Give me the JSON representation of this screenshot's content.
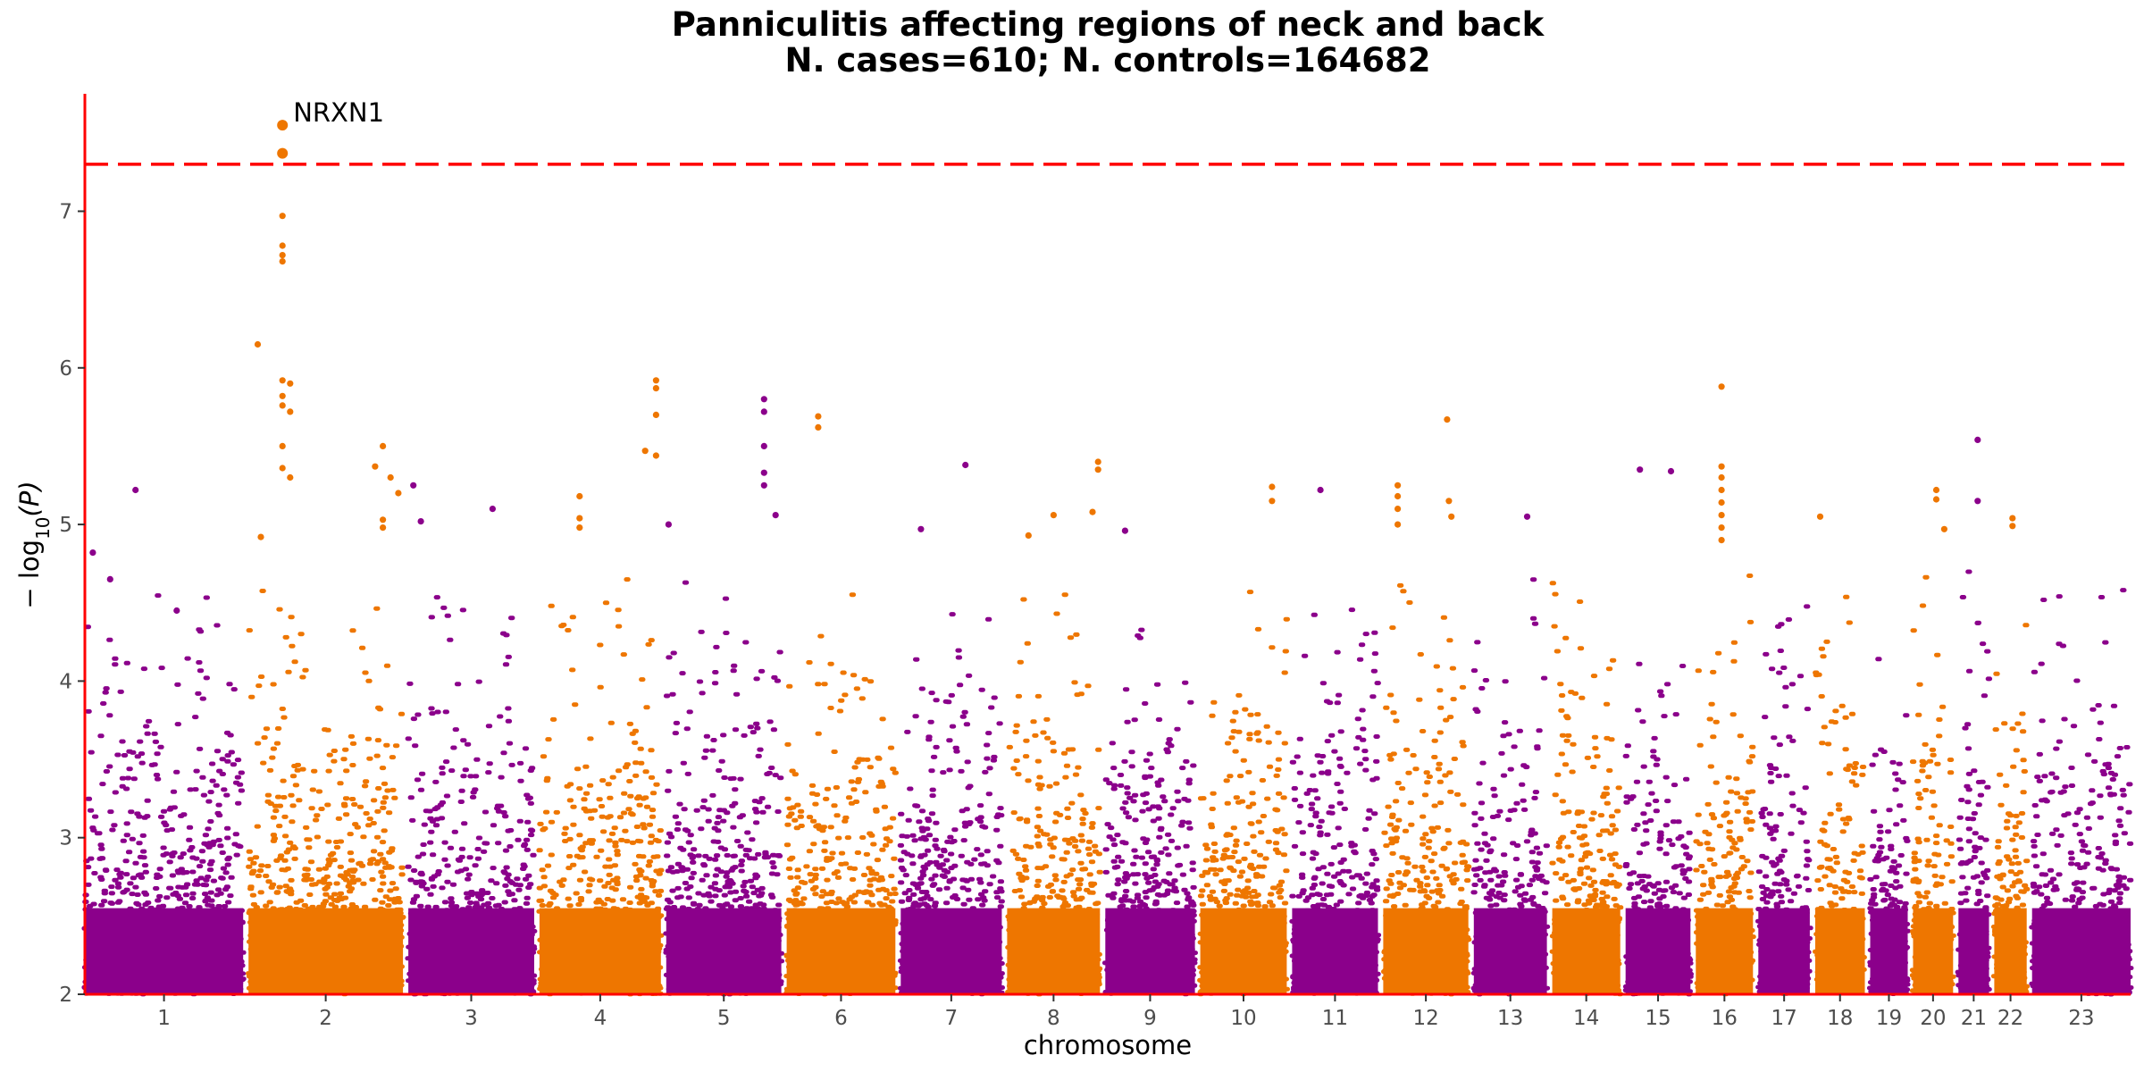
{
  "chart_data": {
    "type": "scatter",
    "subtype": "manhattan",
    "title": "Panniculitis affecting regions of neck and back",
    "subtitle": "N. cases=610; N. controls=164682",
    "xlabel": "chromosome",
    "ylabel": "− log10(P)",
    "ylim": [
      2,
      7.75
    ],
    "yticks": [
      2,
      3,
      4,
      5,
      6,
      7
    ],
    "significance_line": 7.3,
    "colors": {
      "odd": "#8b008b",
      "even": "#ee7600",
      "threshold": "#ff0000",
      "axis": "#ff0000"
    },
    "chromosomes": [
      {
        "label": "1",
        "size": 249
      },
      {
        "label": "2",
        "size": 243
      },
      {
        "label": "3",
        "size": 198
      },
      {
        "label": "4",
        "size": 191
      },
      {
        "label": "5",
        "size": 181
      },
      {
        "label": "6",
        "size": 171
      },
      {
        "label": "7",
        "size": 159
      },
      {
        "label": "8",
        "size": 146
      },
      {
        "label": "9",
        "size": 141
      },
      {
        "label": "10",
        "size": 136
      },
      {
        "label": "11",
        "size": 135
      },
      {
        "label": "12",
        "size": 134
      },
      {
        "label": "13",
        "size": 115
      },
      {
        "label": "14",
        "size": 107
      },
      {
        "label": "15",
        "size": 102
      },
      {
        "label": "16",
        "size": 90
      },
      {
        "label": "17",
        "size": 81
      },
      {
        "label": "18",
        "size": 78
      },
      {
        "label": "19",
        "size": 59
      },
      {
        "label": "20",
        "size": 63
      },
      {
        "label": "21",
        "size": 48
      },
      {
        "label": "22",
        "size": 51
      },
      {
        "label": "23",
        "size": 155
      }
    ],
    "peaks": [
      {
        "chr": "1",
        "pos": 0.05,
        "y": 4.82
      },
      {
        "chr": "1",
        "pos": 0.16,
        "y": 4.65
      },
      {
        "chr": "1",
        "pos": 0.32,
        "y": 5.22
      },
      {
        "chr": "1",
        "pos": 0.58,
        "y": 4.45
      },
      {
        "chr": "2",
        "pos": 0.06,
        "y": 6.15
      },
      {
        "chr": "2",
        "pos": 0.08,
        "y": 4.92
      },
      {
        "chr": "2",
        "pos": 0.22,
        "y": 7.55
      },
      {
        "chr": "2",
        "pos": 0.22,
        "y": 7.37
      },
      {
        "chr": "2",
        "pos": 0.22,
        "y": 6.97
      },
      {
        "chr": "2",
        "pos": 0.22,
        "y": 6.78
      },
      {
        "chr": "2",
        "pos": 0.22,
        "y": 6.72
      },
      {
        "chr": "2",
        "pos": 0.22,
        "y": 6.68
      },
      {
        "chr": "2",
        "pos": 0.22,
        "y": 5.92
      },
      {
        "chr": "2",
        "pos": 0.22,
        "y": 5.82
      },
      {
        "chr": "2",
        "pos": 0.22,
        "y": 5.76
      },
      {
        "chr": "2",
        "pos": 0.22,
        "y": 5.5
      },
      {
        "chr": "2",
        "pos": 0.22,
        "y": 5.36
      },
      {
        "chr": "2",
        "pos": 0.27,
        "y": 5.9
      },
      {
        "chr": "2",
        "pos": 0.27,
        "y": 5.72
      },
      {
        "chr": "2",
        "pos": 0.27,
        "y": 5.3
      },
      {
        "chr": "2",
        "pos": 0.82,
        "y": 5.37
      },
      {
        "chr": "2",
        "pos": 0.87,
        "y": 5.5
      },
      {
        "chr": "2",
        "pos": 0.87,
        "y": 5.03
      },
      {
        "chr": "2",
        "pos": 0.87,
        "y": 4.98
      },
      {
        "chr": "2",
        "pos": 0.92,
        "y": 5.3
      },
      {
        "chr": "2",
        "pos": 0.97,
        "y": 5.2
      },
      {
        "chr": "3",
        "pos": 0.04,
        "y": 5.25
      },
      {
        "chr": "3",
        "pos": 0.1,
        "y": 5.02
      },
      {
        "chr": "3",
        "pos": 0.67,
        "y": 5.1
      },
      {
        "chr": "4",
        "pos": 0.33,
        "y": 5.18
      },
      {
        "chr": "4",
        "pos": 0.33,
        "y": 5.04
      },
      {
        "chr": "4",
        "pos": 0.33,
        "y": 4.98
      },
      {
        "chr": "4",
        "pos": 0.87,
        "y": 5.47
      },
      {
        "chr": "4",
        "pos": 0.96,
        "y": 5.92
      },
      {
        "chr": "4",
        "pos": 0.96,
        "y": 5.87
      },
      {
        "chr": "4",
        "pos": 0.96,
        "y": 5.7
      },
      {
        "chr": "4",
        "pos": 0.96,
        "y": 5.44
      },
      {
        "chr": "5",
        "pos": 0.02,
        "y": 5.0
      },
      {
        "chr": "5",
        "pos": 0.85,
        "y": 5.8
      },
      {
        "chr": "5",
        "pos": 0.85,
        "y": 5.72
      },
      {
        "chr": "5",
        "pos": 0.85,
        "y": 5.5
      },
      {
        "chr": "5",
        "pos": 0.85,
        "y": 5.33
      },
      {
        "chr": "5",
        "pos": 0.85,
        "y": 5.25
      },
      {
        "chr": "5",
        "pos": 0.95,
        "y": 5.06
      },
      {
        "chr": "6",
        "pos": 0.29,
        "y": 5.69
      },
      {
        "chr": "6",
        "pos": 0.29,
        "y": 5.62
      },
      {
        "chr": "7",
        "pos": 0.64,
        "y": 5.38
      },
      {
        "chr": "7",
        "pos": 0.2,
        "y": 4.97
      },
      {
        "chr": "8",
        "pos": 0.5,
        "y": 5.06
      },
      {
        "chr": "8",
        "pos": 0.23,
        "y": 4.93
      },
      {
        "chr": "8",
        "pos": 0.98,
        "y": 5.4
      },
      {
        "chr": "8",
        "pos": 0.98,
        "y": 5.35
      },
      {
        "chr": "8",
        "pos": 0.92,
        "y": 5.08
      },
      {
        "chr": "9",
        "pos": 0.22,
        "y": 4.96
      },
      {
        "chr": "11",
        "pos": 0.33,
        "y": 5.22
      },
      {
        "chr": "10",
        "pos": 0.83,
        "y": 5.24
      },
      {
        "chr": "10",
        "pos": 0.83,
        "y": 5.15
      },
      {
        "chr": "12",
        "pos": 0.17,
        "y": 5.25
      },
      {
        "chr": "12",
        "pos": 0.17,
        "y": 5.18
      },
      {
        "chr": "12",
        "pos": 0.17,
        "y": 5.1
      },
      {
        "chr": "12",
        "pos": 0.17,
        "y": 5.0
      },
      {
        "chr": "12",
        "pos": 0.75,
        "y": 5.67
      },
      {
        "chr": "12",
        "pos": 0.77,
        "y": 5.15
      },
      {
        "chr": "12",
        "pos": 0.8,
        "y": 5.05
      },
      {
        "chr": "13",
        "pos": 0.73,
        "y": 5.05
      },
      {
        "chr": "15",
        "pos": 0.22,
        "y": 5.35
      },
      {
        "chr": "15",
        "pos": 0.7,
        "y": 5.34
      },
      {
        "chr": "16",
        "pos": 0.45,
        "y": 5.88
      },
      {
        "chr": "16",
        "pos": 0.45,
        "y": 5.37
      },
      {
        "chr": "16",
        "pos": 0.45,
        "y": 5.3
      },
      {
        "chr": "16",
        "pos": 0.45,
        "y": 5.22
      },
      {
        "chr": "16",
        "pos": 0.45,
        "y": 5.14
      },
      {
        "chr": "16",
        "pos": 0.45,
        "y": 5.06
      },
      {
        "chr": "16",
        "pos": 0.45,
        "y": 4.98
      },
      {
        "chr": "16",
        "pos": 0.45,
        "y": 4.9
      },
      {
        "chr": "18",
        "pos": 0.1,
        "y": 5.05
      },
      {
        "chr": "20",
        "pos": 0.58,
        "y": 5.22
      },
      {
        "chr": "20",
        "pos": 0.58,
        "y": 5.16
      },
      {
        "chr": "20",
        "pos": 0.78,
        "y": 4.97
      },
      {
        "chr": "21",
        "pos": 0.63,
        "y": 5.54
      },
      {
        "chr": "21",
        "pos": 0.63,
        "y": 5.15
      },
      {
        "chr": "22",
        "pos": 0.56,
        "y": 5.04
      },
      {
        "chr": "22",
        "pos": 0.56,
        "y": 4.99
      }
    ],
    "annotations": [
      {
        "text": "NRXN1",
        "chr": "2",
        "pos": 0.22,
        "y": 7.55
      }
    ]
  }
}
